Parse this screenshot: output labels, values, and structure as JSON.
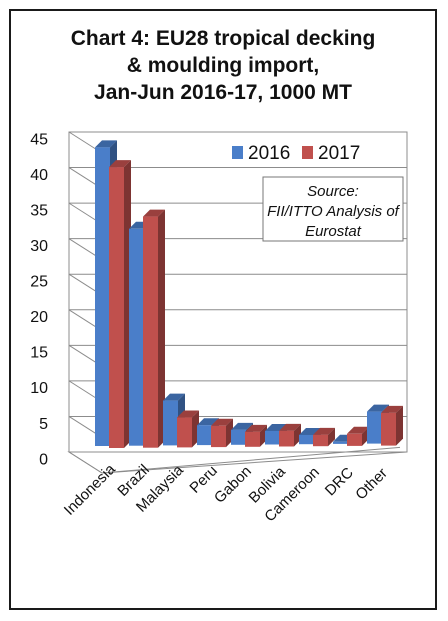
{
  "chart_data": {
    "type": "bar",
    "title_lines": [
      "Chart 4: EU28 tropical decking",
      "& moulding import,",
      "Jan-Jun 2016-17, 1000 MT"
    ],
    "categories": [
      "Indonesia",
      "Brazil",
      "Malaysia",
      "Peru",
      "Gabon",
      "Bolivia",
      "Cameroon",
      "DRC",
      "Other"
    ],
    "series": [
      {
        "name": "2016",
        "color": "#4a7ec9",
        "values": [
          42.0,
          30.5,
          6.3,
          2.8,
          2.1,
          1.9,
          1.3,
          0.3,
          4.5
        ]
      },
      {
        "name": "2017",
        "color": "#c0504d",
        "values": [
          39.5,
          32.5,
          4.2,
          3.0,
          2.1,
          2.2,
          1.6,
          1.7,
          4.6
        ]
      }
    ],
    "y_ticks": [
      "0",
      "5",
      "10",
      "15",
      "20",
      "25",
      "30",
      "35",
      "40",
      "45"
    ],
    "ylim": [
      0,
      45
    ],
    "grid": true,
    "legend_position": "top-right",
    "annotation": [
      "Source:",
      "FII/ITTO Analysis of",
      "Eurostat"
    ]
  }
}
